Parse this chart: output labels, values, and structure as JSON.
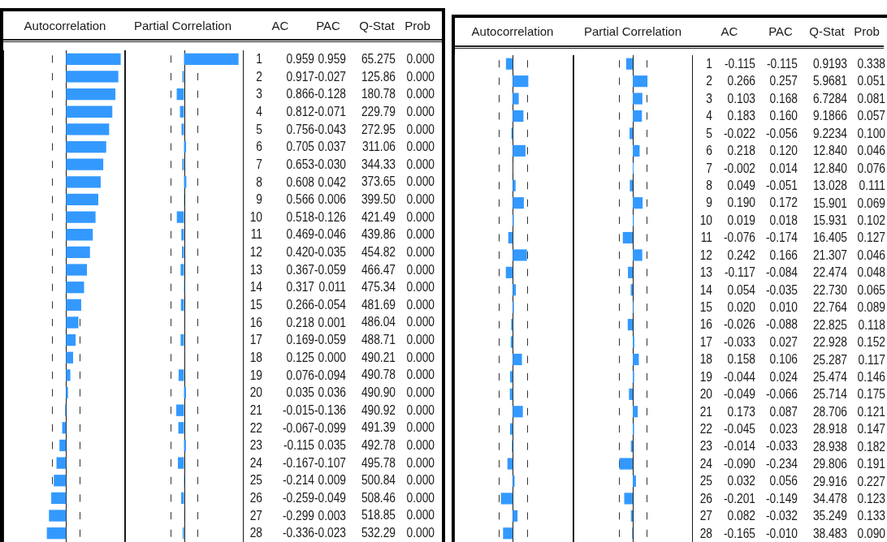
{
  "chart_data": [
    {
      "type": "bar",
      "orientation": "horizontal",
      "title": "Autocorrelation",
      "annotations": [
        "AC"
      ],
      "categories": [
        "1",
        "2",
        "3",
        "4",
        "5",
        "6",
        "7",
        "8",
        "9",
        "10",
        "11",
        "12",
        "13",
        "14",
        "15",
        "16",
        "17",
        "18",
        "19",
        "20",
        "21",
        "22",
        "23",
        "24",
        "25",
        "26",
        "27",
        "28"
      ],
      "values": [
        0.959,
        0.917,
        0.866,
        0.812,
        0.756,
        0.705,
        0.653,
        0.608,
        0.566,
        0.518,
        0.469,
        0.42,
        0.367,
        0.317,
        0.266,
        0.218,
        0.169,
        0.125,
        0.076,
        0.035,
        -0.015,
        -0.067,
        -0.115,
        -0.167,
        -0.214,
        -0.259,
        -0.299,
        -0.336
      ],
      "value_labels": [
        "0.959",
        "0.917",
        "0.866",
        "0.812",
        "0.756",
        "0.705",
        "0.653",
        "0.608",
        "0.566",
        "0.518",
        "0.469",
        "0.420",
        "0.367",
        "0.317",
        "0.266",
        "0.218",
        "0.169",
        "0.125",
        "0.076",
        "0.035",
        "-0.015",
        "-0.067",
        "-0.115",
        "-0.167",
        "-0.214",
        "-0.259",
        "-0.299",
        "-0.336"
      ],
      "color": "#3399ff",
      "xlim": [
        -1.1,
        1.05
      ],
      "tick_labels": "y",
      "ref_lines": [
        {
          "axis": "x",
          "value": -0.24,
          "line_style": "dashed"
        },
        {
          "axis": "x",
          "value": 0.24,
          "line_style": "dashed"
        }
      ]
    },
    {
      "type": "bar",
      "orientation": "horizontal",
      "title": "Partial Correlation",
      "annotations": [
        "PAC"
      ],
      "categories": [
        null,
        null,
        null,
        null,
        null,
        null,
        null,
        null,
        null,
        null,
        null,
        null,
        null,
        null,
        null,
        null,
        null,
        null,
        null,
        null,
        null,
        null,
        null,
        null,
        null,
        null,
        null,
        null
      ],
      "values": [
        0.959,
        -0.027,
        -0.128,
        -0.071,
        -0.043,
        0.037,
        -0.03,
        0.042,
        0.006,
        -0.126,
        -0.046,
        -0.035,
        -0.059,
        0.011,
        -0.054,
        0.001,
        -0.059,
        0.0,
        -0.094,
        0.036,
        -0.136,
        -0.099,
        0.035,
        -0.107,
        0.009,
        -0.049,
        0.003,
        -0.023
      ],
      "value_labels": [
        "0.959",
        "-0.027",
        "-0.128",
        "-0.071",
        "-0.043",
        "0.037",
        "-0.030",
        "0.042",
        "0.006",
        "-0.126",
        "-0.046",
        "-0.035",
        "-0.059",
        "0.011",
        "-0.054",
        "0.001",
        "-0.059",
        "0.000",
        "-0.094",
        "0.036",
        "-0.136",
        "-0.099",
        "0.035",
        "-0.107",
        "0.009",
        "-0.049",
        "0.003",
        "-0.023"
      ],
      "color": "#3399ff",
      "xlim": [
        -1.05,
        1.05
      ],
      "ref_lines": [
        {
          "axis": "x",
          "value": -0.24,
          "line_style": "dashed"
        },
        {
          "axis": "x",
          "value": 0.24,
          "line_style": "dashed"
        }
      ]
    },
    {
      "type": "other",
      "categories": [
        "Q-Stat",
        "Prob"
      ],
      "cells": [
        [
          "65.275",
          "0.000"
        ],
        [
          "125.86",
          "0.000"
        ],
        [
          "180.78",
          "0.000"
        ],
        [
          "229.79",
          "0.000"
        ],
        [
          "272.95",
          "0.000"
        ],
        [
          "311.06",
          "0.000"
        ],
        [
          "344.33",
          "0.000"
        ],
        [
          "373.65",
          "0.000"
        ],
        [
          "399.50",
          "0.000"
        ],
        [
          "421.49",
          "0.000"
        ],
        [
          "439.86",
          "0.000"
        ],
        [
          "454.82",
          "0.000"
        ],
        [
          "466.47",
          "0.000"
        ],
        [
          "475.34",
          "0.000"
        ],
        [
          "481.69",
          "0.000"
        ],
        [
          "486.04",
          "0.000"
        ],
        [
          "488.71",
          "0.000"
        ],
        [
          "490.21",
          "0.000"
        ],
        [
          "490.78",
          "0.000"
        ],
        [
          "490.90",
          "0.000"
        ],
        [
          "490.92",
          "0.000"
        ],
        [
          "491.39",
          "0.000"
        ],
        [
          "492.78",
          "0.000"
        ],
        [
          "495.78",
          "0.000"
        ],
        [
          "500.84",
          "0.000"
        ],
        [
          "508.46",
          "0.000"
        ],
        [
          "518.85",
          "0.000"
        ],
        [
          "532.29",
          "0.000"
        ]
      ]
    },
    {
      "type": "bar",
      "orientation": "horizontal",
      "title": "Autocorrelation",
      "annotations": [
        "AC"
      ],
      "categories": [
        "1",
        "2",
        "3",
        "4",
        "5",
        "6",
        "7",
        "8",
        "9",
        "10",
        "11",
        "12",
        "13",
        "14",
        "15",
        "16",
        "17",
        "18",
        "19",
        "20",
        "21",
        "22",
        "23",
        "24",
        "25",
        "26",
        "27",
        "28"
      ],
      "values": [
        -0.115,
        0.266,
        0.103,
        0.183,
        -0.022,
        0.218,
        -0.002,
        0.049,
        0.19,
        0.019,
        -0.076,
        0.242,
        -0.117,
        0.054,
        0.02,
        -0.026,
        -0.033,
        0.158,
        -0.044,
        -0.049,
        0.173,
        -0.045,
        -0.014,
        -0.09,
        0.032,
        -0.201,
        0.082,
        -0.165
      ],
      "value_labels": [
        "-0.115",
        "0.266",
        "0.103",
        "0.183",
        "-0.022",
        "0.218",
        "-0.002",
        "0.049",
        "0.190",
        "0.019",
        "-0.076",
        "0.242",
        "-0.117",
        "0.054",
        "0.020",
        "-0.026",
        "-0.033",
        "0.158",
        "-0.044",
        "-0.049",
        "0.173",
        "-0.045",
        "-0.014",
        "-0.090",
        "0.032",
        "-0.201",
        "0.082",
        "-0.165"
      ],
      "color": "#3399ff",
      "xlim": [
        -1,
        1.05
      ],
      "tick_labels": "y",
      "ref_lines": [
        {
          "axis": "x",
          "value": -0.24,
          "line_style": "dashed"
        },
        {
          "axis": "x",
          "value": 0.24,
          "line_style": "dashed"
        }
      ]
    },
    {
      "type": "bar",
      "orientation": "horizontal",
      "title": "Partial Correlation",
      "annotations": [
        "PAC"
      ],
      "categories": [
        null,
        null,
        null,
        null,
        null,
        null,
        null,
        null,
        null,
        null,
        null,
        null,
        null,
        null,
        null,
        null,
        null,
        null,
        null,
        null,
        null,
        null,
        null,
        null,
        null,
        null,
        null,
        null
      ],
      "values": [
        -0.115,
        0.257,
        0.168,
        0.16,
        -0.056,
        0.12,
        0.014,
        -0.051,
        0.172,
        0.018,
        -0.174,
        0.166,
        -0.084,
        -0.035,
        0.01,
        -0.088,
        0.027,
        0.106,
        0.024,
        -0.066,
        0.087,
        0.023,
        -0.033,
        -0.234,
        0.056,
        -0.149,
        -0.032,
        -0.01
      ],
      "value_labels": [
        "-0.115",
        "0.257",
        "0.168",
        "0.160",
        "-0.056",
        "0.120",
        "0.014",
        "-0.051",
        "0.172",
        "0.018",
        "-0.174",
        "0.166",
        "-0.084",
        "-0.035",
        "0.010",
        "-0.088",
        "0.027",
        "0.106",
        "0.024",
        "-0.066",
        "0.087",
        "0.023",
        "-0.033",
        "-0.234",
        "0.056",
        "-0.149",
        "-0.032",
        "-0.010"
      ],
      "color": "#3399ff",
      "xlim": [
        -1.05,
        1.05
      ],
      "ref_lines": [
        {
          "axis": "x",
          "value": -0.24,
          "line_style": "dashed"
        },
        {
          "axis": "x",
          "value": 0.24,
          "line_style": "dashed"
        }
      ]
    },
    {
      "type": "other",
      "categories": [
        "Q-Stat",
        "Prob"
      ],
      "cells": [
        [
          "0.9193",
          "0.338"
        ],
        [
          "5.9681",
          "0.051"
        ],
        [
          "6.7284",
          "0.081"
        ],
        [
          "9.1866",
          "0.057"
        ],
        [
          "9.2234",
          "0.100"
        ],
        [
          "12.840",
          "0.046"
        ],
        [
          "12.840",
          "0.076"
        ],
        [
          "13.028",
          "0.111"
        ],
        [
          "15.901",
          "0.069"
        ],
        [
          "15.931",
          "0.102"
        ],
        [
          "16.405",
          "0.127"
        ],
        [
          "21.307",
          "0.046"
        ],
        [
          "22.474",
          "0.048"
        ],
        [
          "22.730",
          "0.065"
        ],
        [
          "22.764",
          "0.089"
        ],
        [
          "22.825",
          "0.118"
        ],
        [
          "22.928",
          "0.152"
        ],
        [
          "25.287",
          "0.117"
        ],
        [
          "25.474",
          "0.146"
        ],
        [
          "25.714",
          "0.175"
        ],
        [
          "28.706",
          "0.121"
        ],
        [
          "28.918",
          "0.147"
        ],
        [
          "28.938",
          "0.182"
        ],
        [
          "29.806",
          "0.191"
        ],
        [
          "29.916",
          "0.227"
        ],
        [
          "34.478",
          "0.123"
        ],
        [
          "35.249",
          "0.133"
        ],
        [
          "38.483",
          "0.090"
        ]
      ]
    }
  ]
}
